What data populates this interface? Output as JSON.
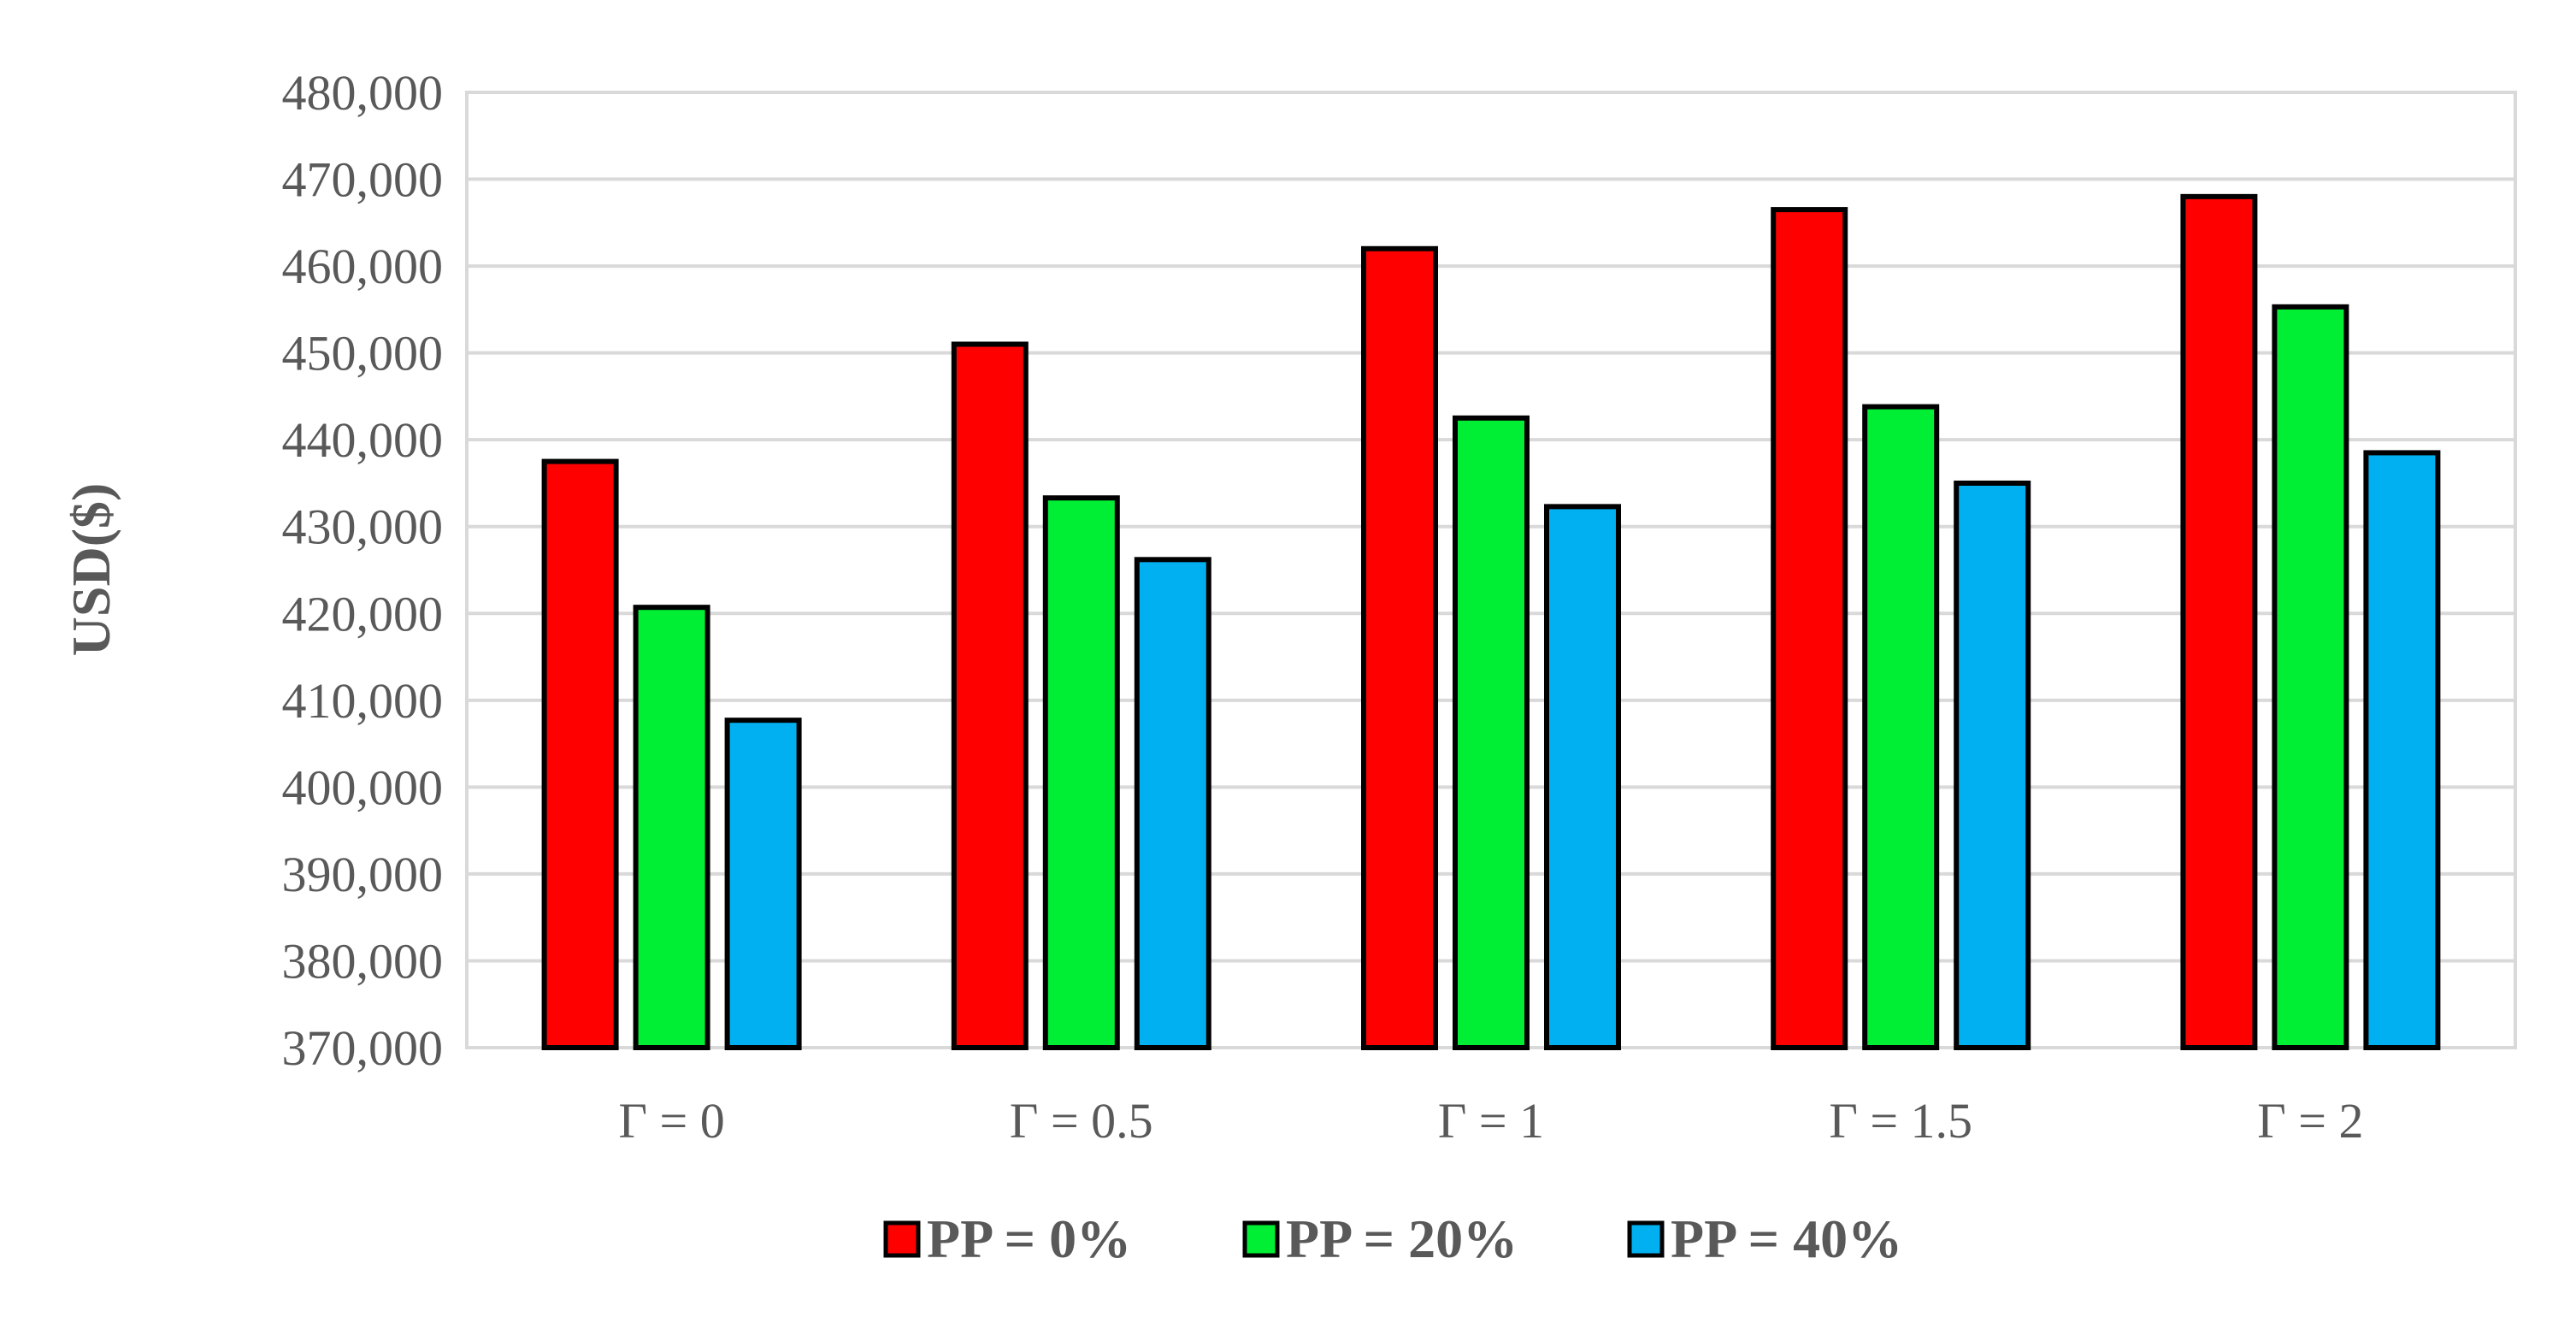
{
  "chart_data": {
    "type": "bar",
    "categories": [
      "Γ = 0",
      "Γ = 0.5",
      "Γ = 1",
      "Γ = 1.5",
      "Γ = 2"
    ],
    "series": [
      {
        "name": "PP = 0%",
        "color": "#ff0000",
        "values": [
          437500,
          451000,
          462000,
          466500,
          468000
        ]
      },
      {
        "name": "PP = 20%",
        "color": "#00ee33",
        "values": [
          420700,
          433300,
          442500,
          443800,
          455300
        ]
      },
      {
        "name": "PP = 40%",
        "color": "#00b0f0",
        "values": [
          407700,
          426200,
          432300,
          435000,
          438500
        ]
      }
    ],
    "ylabel": "USD($)",
    "ylim": [
      370000,
      480000
    ],
    "yticks": [
      "370,000",
      "380,000",
      "390,000",
      "400,000",
      "410,000",
      "420,000",
      "430,000",
      "440,000",
      "450,000",
      "460,000",
      "470,000",
      "480,000"
    ],
    "ytick_values": [
      370000,
      380000,
      390000,
      400000,
      410000,
      420000,
      430000,
      440000,
      450000,
      460000,
      470000,
      480000
    ],
    "grid": true,
    "legend_position": "bottom"
  }
}
